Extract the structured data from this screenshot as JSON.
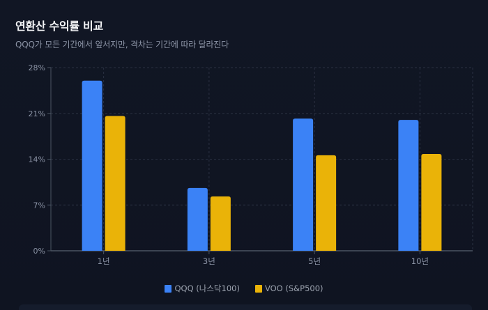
{
  "header": {
    "title": "연환산 수익률 비교",
    "subtitle": "QQQ가 모든 기간에서 앞서지만, 격차는 기간에 따라 달라진다"
  },
  "colors": {
    "qqq": "#3b82f6",
    "voo": "#eab308",
    "grid": "#2a3142",
    "axis": "#4b5563",
    "tick_text": "#8b93a5"
  },
  "legend": [
    {
      "label": "QQQ (나스닥100)",
      "color": "#3b82f6"
    },
    {
      "label": "VOO (S&P500)",
      "color": "#eab308"
    }
  ],
  "chart_data": {
    "type": "bar",
    "title": "연환산 수익률 비교",
    "subtitle": "QQQ가 모든 기간에서 앞서지만, 격차는 기간에 따라 달라진다",
    "categories": [
      "1년",
      "3년",
      "5년",
      "10년"
    ],
    "series": [
      {
        "name": "QQQ (나스닥100)",
        "color": "#3b82f6",
        "values": [
          26.0,
          9.6,
          20.2,
          20.0
        ]
      },
      {
        "name": "VOO (S&P500)",
        "color": "#eab308",
        "values": [
          20.6,
          8.3,
          14.6,
          14.8
        ]
      }
    ],
    "xlabel": "",
    "ylabel": "",
    "ylim": [
      0,
      28
    ],
    "yticks": [
      0,
      7,
      14,
      21,
      28
    ],
    "ytick_labels": [
      "0%",
      "7%",
      "14%",
      "21%",
      "28%"
    ],
    "grid": true,
    "legend_position": "bottom"
  }
}
